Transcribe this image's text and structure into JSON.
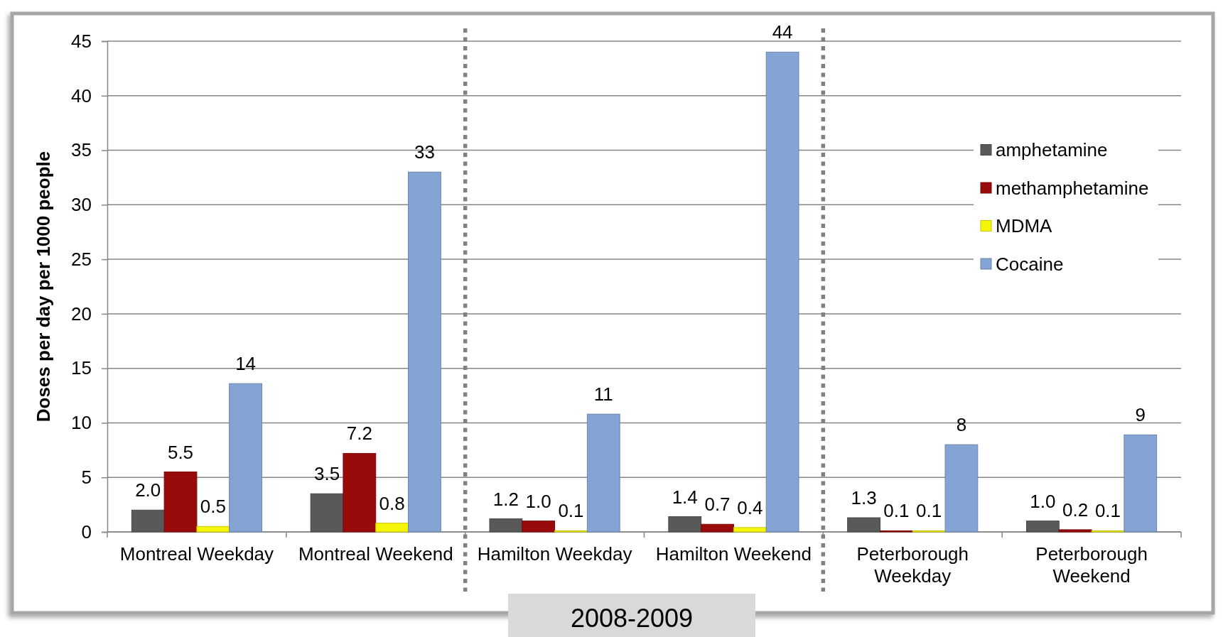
{
  "chart_data": {
    "type": "bar",
    "ylabel": "Doses per day per 1000 people",
    "categories": [
      "Montreal Weekday",
      "Montreal Weekend",
      "Hamilton Weekday",
      "Hamilton Weekend",
      "Peterborough Weekday",
      "Peterborough Weekend"
    ],
    "series": [
      {
        "name": "amphetamine",
        "color": "#595959",
        "values": [
          2.0,
          3.5,
          1.2,
          1.4,
          1.3,
          1.0
        ],
        "value_labels": [
          "2.0",
          "3.5",
          "1.2",
          "1.4",
          "1.3",
          "1.0"
        ]
      },
      {
        "name": "methamphetamine",
        "color": "#990b0b",
        "values": [
          5.5,
          7.2,
          1.0,
          0.7,
          0.1,
          0.2
        ],
        "value_labels": [
          "5.5",
          "7.2",
          "1.0",
          "0.7",
          "0.1",
          "0.2"
        ]
      },
      {
        "name": "MDMA",
        "color": "#f5f50a",
        "values": [
          0.5,
          0.8,
          0.1,
          0.4,
          0.1,
          0.1
        ],
        "value_labels": [
          "0.5",
          "0.8",
          "0.1",
          "0.4",
          "0.1",
          "0.1"
        ]
      },
      {
        "name": "Cocaine",
        "color": "#84a4d4",
        "values": [
          13.6,
          33,
          10.8,
          44,
          8,
          8.9
        ],
        "value_labels": [
          "14",
          "33",
          "11",
          "44",
          "8",
          "9"
        ]
      }
    ],
    "ylim": [
      0,
      45
    ],
    "yticks": [
      0,
      5,
      10,
      15,
      20,
      25,
      30,
      35,
      40,
      45
    ],
    "grid": "y",
    "legend": "right",
    "annotations": [
      "2008-2009"
    ]
  }
}
